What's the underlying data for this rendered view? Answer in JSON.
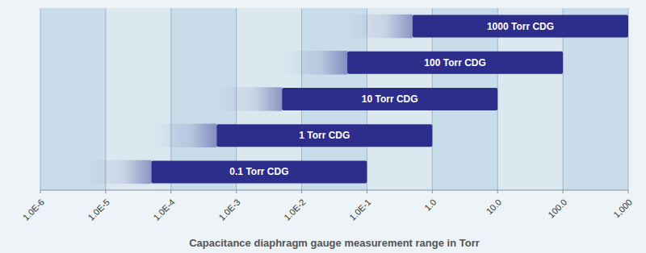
{
  "chart_data": {
    "type": "bar",
    "orientation": "horizontal",
    "log": "x",
    "xlabel": "Capacitance diaphragm gauge measurement range in Torr",
    "categories": [
      "0.1 Torr CDG",
      "1 Torr CDG",
      "10 Torr CDG",
      "100 Torr CDG",
      "1000 Torr CDG"
    ],
    "values": [
      [
        5e-05,
        0.1
      ],
      [
        0.0005,
        1.0
      ],
      [
        0.005,
        10.0
      ],
      [
        0.05,
        100.0
      ],
      [
        0.5,
        1000.0
      ]
    ],
    "glow_start": [
      5e-06,
      5e-05,
      0.0005,
      0.005,
      0.05
    ],
    "color": "#2d2d8c",
    "xlim": [
      1e-06,
      1000.0
    ],
    "xticks": [
      {
        "value": 1e-06,
        "label": "1.0E-6"
      },
      {
        "value": 1e-05,
        "label": "1.0E-5"
      },
      {
        "value": 0.0001,
        "label": "1.0E-4"
      },
      {
        "value": 0.001,
        "label": "1.0E-3"
      },
      {
        "value": 0.01,
        "label": "1.0E-2"
      },
      {
        "value": 0.1,
        "label": "1.0E-1"
      },
      {
        "value": 1.0,
        "label": "1.0"
      },
      {
        "value": 10.0,
        "label": "10.0"
      },
      {
        "value": 100.0,
        "label": "100.0"
      },
      {
        "value": 1000.0,
        "label": "1,000"
      }
    ],
    "grid": true,
    "tick_labels": "x"
  }
}
